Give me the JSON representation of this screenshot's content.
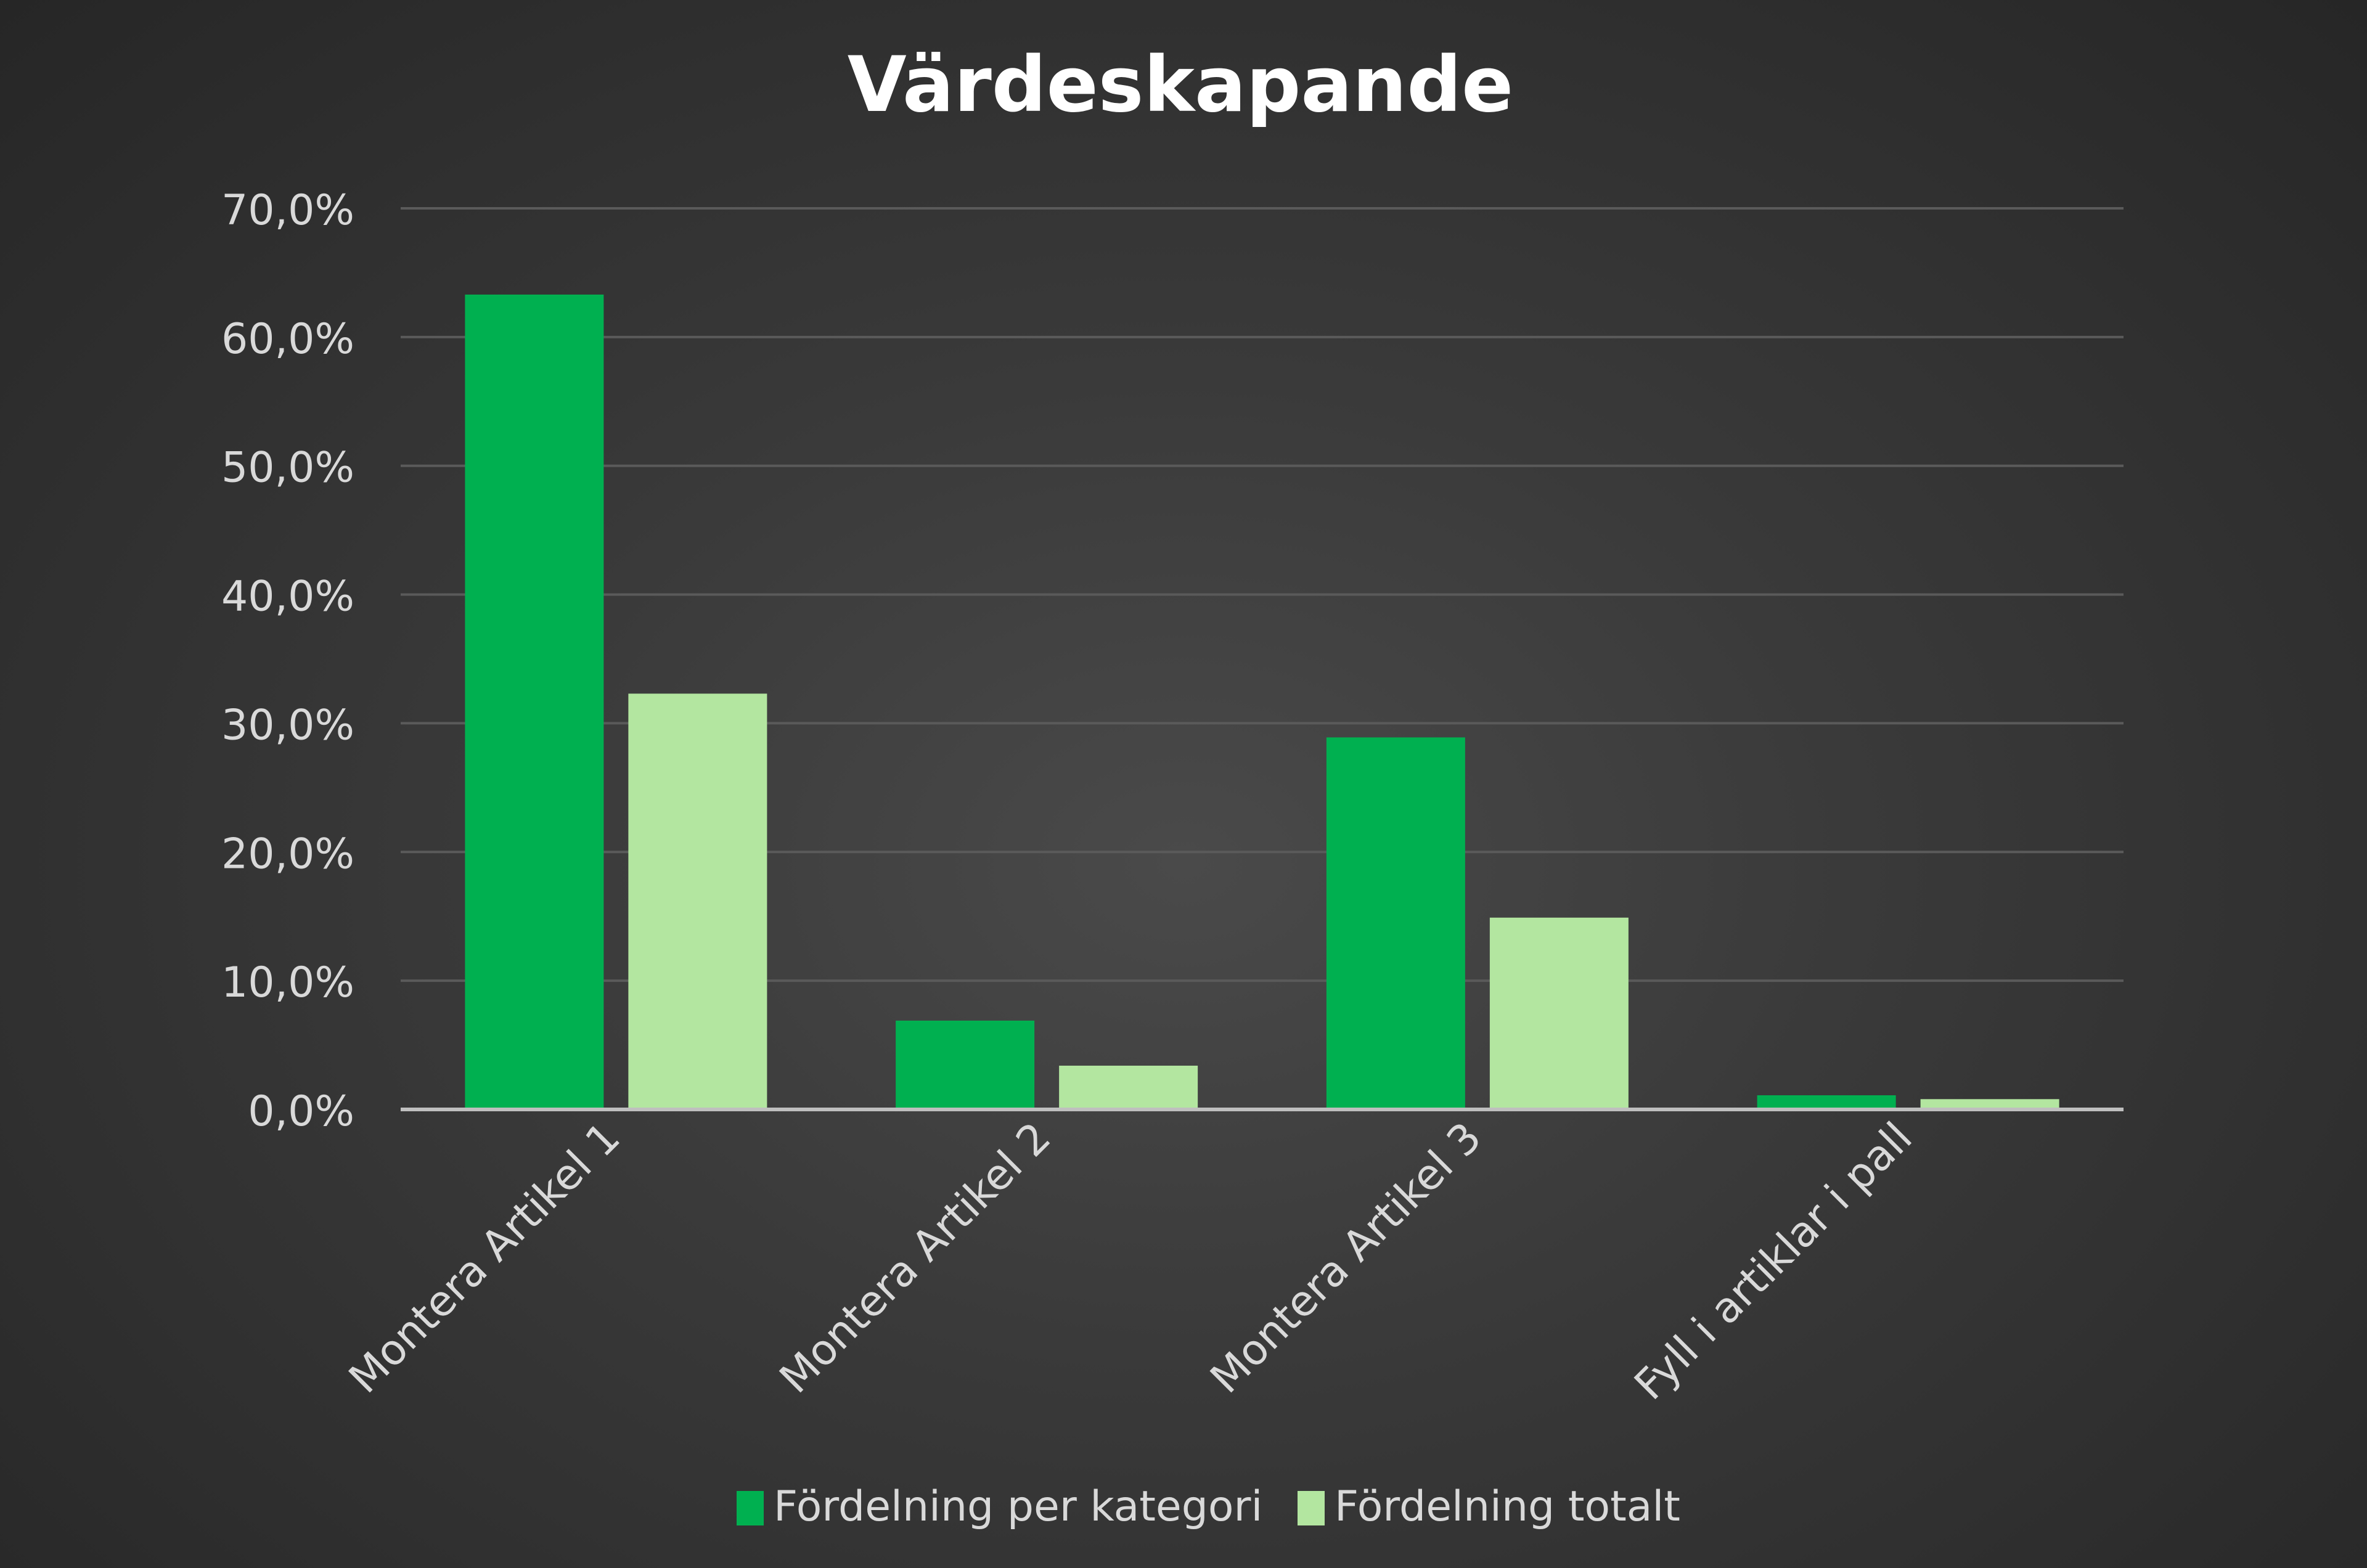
{
  "chart_data": {
    "type": "bar",
    "title": "Värdeskapande",
    "xlabel": "",
    "ylabel": "",
    "categories": [
      "Montera Artikel 1",
      "Montera Artikel 2",
      "Montera Artikel 3",
      "Fyll i artiklar i pall"
    ],
    "series": [
      {
        "name": "Fördelning per kategori",
        "color": "#00b050",
        "values": [
          63.3,
          6.9,
          28.9,
          1.1
        ]
      },
      {
        "name": "Fördelning totalt",
        "color": "#b3e6a0",
        "values": [
          32.3,
          3.4,
          14.9,
          0.8
        ]
      }
    ],
    "ylim": [
      0,
      70
    ],
    "yticks": [
      "0,0%",
      "10,0%",
      "20,0%",
      "30,0%",
      "40,0%",
      "50,0%",
      "60,0%",
      "70,0%"
    ],
    "grid": true,
    "legend_position": "bottom"
  }
}
